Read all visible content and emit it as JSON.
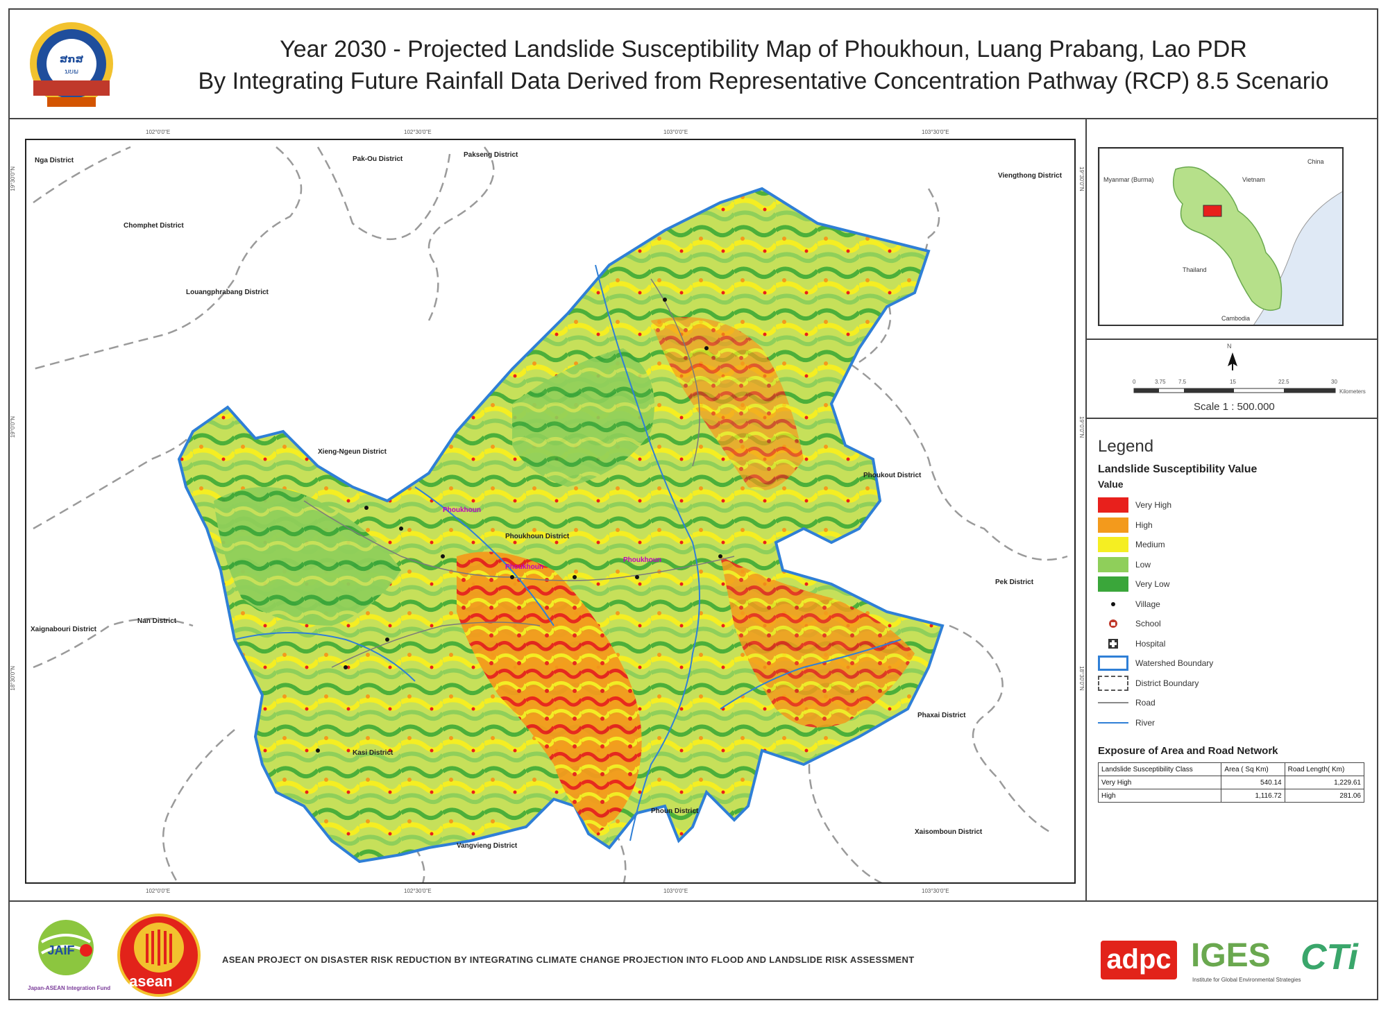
{
  "header": {
    "title_line1": "Year 2030 - Projected Landslide Susceptibility Map of Phoukhoun, Luang Prabang, Lao PDR",
    "title_line2": "By Integrating Future Rainfall Data Derived from Representative Concentration Pathway (RCP) 8.5 Scenario"
  },
  "map": {
    "district_labels": [
      "Nga District",
      "Pak-Ou District",
      "Pakseng District",
      "Viengthong District",
      "Chomphet District",
      "Louangphrabang District",
      "Xieng-Ngeun District",
      "Phoukhoun District",
      "Phoukout District",
      "Pek District",
      "Nan District",
      "Xaignabouri District",
      "Kasi District",
      "Phaxai District",
      "Phoun District",
      "Vangvieng District",
      "Xaisomboun District"
    ],
    "village_labels": [
      "Phoukhoun",
      "Phoukhoun",
      "Phoukhoun"
    ],
    "tick_labels_top": [
      "102°0'0\"E",
      "102°30'0\"E",
      "103°0'0\"E",
      "103°30'0\"E"
    ],
    "tick_labels_side": [
      "19°30'0\"N",
      "19°0'0\"N",
      "18°30'0\"N"
    ]
  },
  "inset": {
    "labels": [
      "Myanmar (Burma)",
      "Vietnam",
      "China",
      "Thailand",
      "Cambodia"
    ]
  },
  "scale": {
    "ticks": [
      "0",
      "3.75",
      "7.5",
      "15",
      "22.5",
      "30"
    ],
    "unit": "Kilometers",
    "caption": "Scale 1 : 500.000",
    "north": "N"
  },
  "legend": {
    "title": "Legend",
    "subtitle": "Landslide Susceptibility Value",
    "value_label": "Value",
    "classes": [
      {
        "label": "Very High",
        "color": "#e8201c"
      },
      {
        "label": "High",
        "color": "#f39a1c"
      },
      {
        "label": "Medium",
        "color": "#f5ee22"
      },
      {
        "label": "Low",
        "color": "#8fcf5a"
      },
      {
        "label": "Very Low",
        "color": "#3aa63a"
      }
    ],
    "symbols": [
      {
        "label": "Village",
        "icon": "village-dot-icon"
      },
      {
        "label": "School",
        "icon": "school-icon"
      },
      {
        "label": "Hospital",
        "icon": "hospital-icon"
      },
      {
        "label": "Watershed Boundary",
        "icon": "watershed-boundary-icon"
      },
      {
        "label": "District Boundary",
        "icon": "district-boundary-icon"
      },
      {
        "label": "Road",
        "icon": "road-line-icon"
      },
      {
        "label": "River",
        "icon": "river-line-icon"
      }
    ]
  },
  "exposure": {
    "title": "Exposure of Area and Road Network",
    "headers": [
      "Landslide Susceptibility Class",
      "Area ( Sq Km)",
      "Road Length( Km)"
    ],
    "rows": [
      [
        "Very High",
        "540.14",
        "1,229.61"
      ],
      [
        "High",
        "1,116.72",
        "281.06"
      ]
    ]
  },
  "footer": {
    "project_text": "ASEAN PROJECT ON DISASTER RISK REDUCTION BY INTEGRATING CLIMATE CHANGE PROJECTION INTO FLOOD AND LANDSLIDE RISK ASSESSMENT",
    "jaif": "JAIF",
    "jaif_caption": "Japan-ASEAN Integration Fund",
    "asean": "asean",
    "adpc": "adpc",
    "iges": "IGES",
    "iges_sub": "Institute for Global Environmental Strategies",
    "cti": "CTi"
  }
}
